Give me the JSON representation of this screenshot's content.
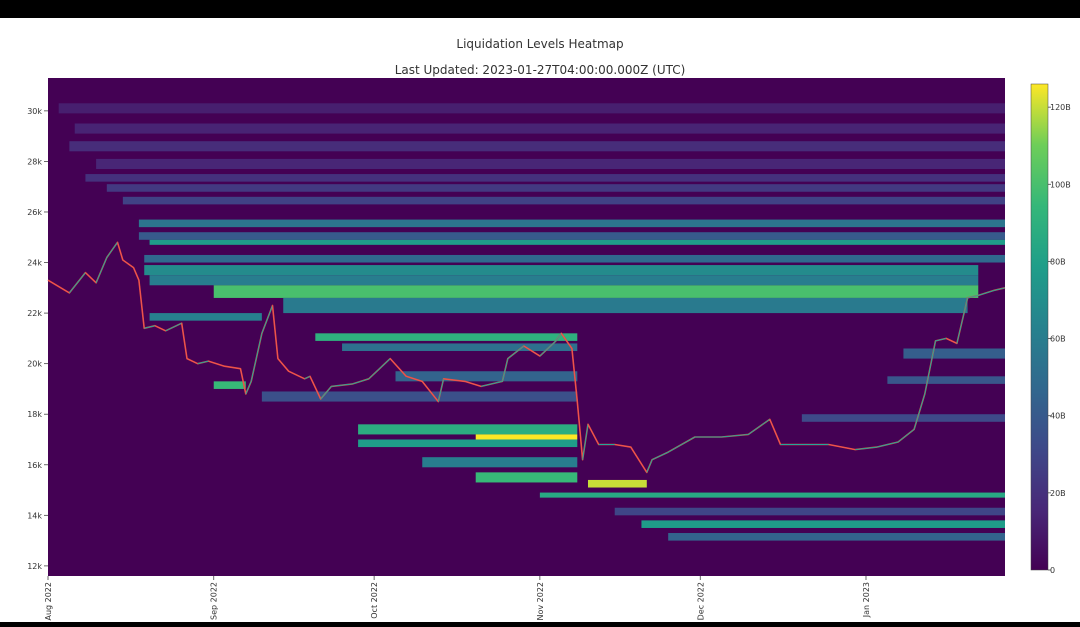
{
  "chart_data": {
    "type": "heatmap",
    "title": "Liquidation Levels Heatmap",
    "subtitle": "Last Updated: 2023-01-27T04:00:00.000Z (UTC)",
    "x_start": "2022-08-01",
    "x_end": "2023-01-27",
    "x_ticks": [
      {
        "label": "Aug 2022",
        "date": "2022-08-01"
      },
      {
        "label": "Sep 2022",
        "date": "2022-09-01"
      },
      {
        "label": "Oct 2022",
        "date": "2022-10-01"
      },
      {
        "label": "Nov 2022",
        "date": "2022-11-01"
      },
      {
        "label": "Dec 2022",
        "date": "2022-12-01"
      },
      {
        "label": "Jan 2023",
        "date": "2023-01-01"
      }
    ],
    "y_ticks": [
      {
        "label": "12k",
        "value": 12000
      },
      {
        "label": "14k",
        "value": 14000
      },
      {
        "label": "16k",
        "value": 16000
      },
      {
        "label": "18k",
        "value": 18000
      },
      {
        "label": "20k",
        "value": 20000
      },
      {
        "label": "22k",
        "value": 22000
      },
      {
        "label": "24k",
        "value": 24000
      },
      {
        "label": "26k",
        "value": 26000
      },
      {
        "label": "28k",
        "value": 28000
      },
      {
        "label": "30k",
        "value": 30000
      }
    ],
    "ylim": [
      11600,
      31300
    ],
    "colorbar": {
      "colorscale": "Viridis",
      "range": [
        0,
        126
      ],
      "unit": "B",
      "ticks": [
        {
          "label": "0",
          "value": 0
        },
        {
          "label": "20B",
          "value": 20
        },
        {
          "label": "40B",
          "value": 40
        },
        {
          "label": "60B",
          "value": 60
        },
        {
          "label": "80B",
          "value": 80
        },
        {
          "label": "100B",
          "value": 100
        },
        {
          "label": "120B",
          "value": 120
        }
      ]
    },
    "price_path": [
      [
        "2022-08-01",
        23300
      ],
      [
        "2022-08-05",
        22800
      ],
      [
        "2022-08-08",
        23600
      ],
      [
        "2022-08-10",
        23200
      ],
      [
        "2022-08-12",
        24200
      ],
      [
        "2022-08-14",
        24800
      ],
      [
        "2022-08-15",
        24100
      ],
      [
        "2022-08-17",
        23800
      ],
      [
        "2022-08-18",
        23300
      ],
      [
        "2022-08-19",
        21400
      ],
      [
        "2022-08-21",
        21500
      ],
      [
        "2022-08-23",
        21300
      ],
      [
        "2022-08-26",
        21600
      ],
      [
        "2022-08-27",
        20200
      ],
      [
        "2022-08-29",
        20000
      ],
      [
        "2022-08-31",
        20100
      ],
      [
        "2022-09-03",
        19900
      ],
      [
        "2022-09-06",
        19800
      ],
      [
        "2022-09-07",
        18800
      ],
      [
        "2022-09-08",
        19300
      ],
      [
        "2022-09-10",
        21200
      ],
      [
        "2022-09-12",
        22300
      ],
      [
        "2022-09-13",
        20200
      ],
      [
        "2022-09-15",
        19700
      ],
      [
        "2022-09-18",
        19400
      ],
      [
        "2022-09-19",
        19500
      ],
      [
        "2022-09-21",
        18600
      ],
      [
        "2022-09-23",
        19100
      ],
      [
        "2022-09-27",
        19200
      ],
      [
        "2022-09-30",
        19400
      ],
      [
        "2022-10-04",
        20200
      ],
      [
        "2022-10-07",
        19500
      ],
      [
        "2022-10-10",
        19300
      ],
      [
        "2022-10-13",
        18500
      ],
      [
        "2022-10-14",
        19400
      ],
      [
        "2022-10-18",
        19300
      ],
      [
        "2022-10-21",
        19100
      ],
      [
        "2022-10-25",
        19300
      ],
      [
        "2022-10-26",
        20200
      ],
      [
        "2022-10-29",
        20700
      ],
      [
        "2022-11-01",
        20300
      ],
      [
        "2022-11-04",
        20900
      ],
      [
        "2022-11-05",
        21200
      ],
      [
        "2022-11-07",
        20600
      ],
      [
        "2022-11-08",
        18500
      ],
      [
        "2022-11-09",
        16200
      ],
      [
        "2022-11-10",
        17600
      ],
      [
        "2022-11-12",
        16800
      ],
      [
        "2022-11-15",
        16800
      ],
      [
        "2022-11-18",
        16700
      ],
      [
        "2022-11-21",
        15700
      ],
      [
        "2022-11-22",
        16200
      ],
      [
        "2022-11-25",
        16500
      ],
      [
        "2022-11-30",
        17100
      ],
      [
        "2022-12-05",
        17100
      ],
      [
        "2022-12-10",
        17200
      ],
      [
        "2022-12-14",
        17800
      ],
      [
        "2022-12-16",
        16800
      ],
      [
        "2022-12-20",
        16800
      ],
      [
        "2022-12-25",
        16800
      ],
      [
        "2022-12-30",
        16600
      ],
      [
        "2023-01-03",
        16700
      ],
      [
        "2023-01-07",
        16900
      ],
      [
        "2023-01-10",
        17400
      ],
      [
        "2023-01-12",
        18800
      ],
      [
        "2023-01-14",
        20900
      ],
      [
        "2023-01-16",
        21000
      ],
      [
        "2023-01-18",
        20800
      ],
      [
        "2023-01-20",
        22600
      ],
      [
        "2023-01-22",
        22700
      ],
      [
        "2023-01-25",
        22900
      ],
      [
        "2023-01-27",
        23000
      ]
    ],
    "liquidation_bands": [
      {
        "y_low": 29900,
        "y_high": 30300,
        "start": "2022-08-03",
        "end": "2023-01-27",
        "value": 12
      },
      {
        "y_low": 29100,
        "y_high": 29500,
        "start": "2022-08-06",
        "end": "2023-01-27",
        "value": 14
      },
      {
        "y_low": 28400,
        "y_high": 28800,
        "start": "2022-08-05",
        "end": "2023-01-27",
        "value": 18
      },
      {
        "y_low": 27700,
        "y_high": 28100,
        "start": "2022-08-10",
        "end": "2023-01-27",
        "value": 15
      },
      {
        "y_low": 27200,
        "y_high": 27500,
        "start": "2022-08-08",
        "end": "2023-01-27",
        "value": 20
      },
      {
        "y_low": 26800,
        "y_high": 27100,
        "start": "2022-08-12",
        "end": "2023-01-27",
        "value": 24
      },
      {
        "y_low": 26300,
        "y_high": 26600,
        "start": "2022-08-15",
        "end": "2023-01-27",
        "value": 28
      },
      {
        "y_low": 25400,
        "y_high": 25700,
        "start": "2022-08-18",
        "end": "2023-01-27",
        "value": 55
      },
      {
        "y_low": 24900,
        "y_high": 25200,
        "start": "2022-08-18",
        "end": "2023-01-27",
        "value": 40
      },
      {
        "y_low": 24700,
        "y_high": 24900,
        "start": "2022-08-20",
        "end": "2023-01-27",
        "value": 78
      },
      {
        "y_low": 24000,
        "y_high": 24300,
        "start": "2022-08-19",
        "end": "2023-01-27",
        "value": 48
      },
      {
        "y_low": 23500,
        "y_high": 23900,
        "start": "2022-08-19",
        "end": "2023-01-22",
        "value": 68
      },
      {
        "y_low": 23100,
        "y_high": 23500,
        "start": "2022-08-20",
        "end": "2023-01-22",
        "value": 60
      },
      {
        "y_low": 22600,
        "y_high": 23100,
        "start": "2022-09-01",
        "end": "2023-01-22",
        "value": 100
      },
      {
        "y_low": 22000,
        "y_high": 22600,
        "start": "2022-09-14",
        "end": "2023-01-20",
        "value": 58
      },
      {
        "y_low": 21700,
        "y_high": 22000,
        "start": "2022-08-20",
        "end": "2022-09-10",
        "value": 62
      },
      {
        "y_low": 20900,
        "y_high": 21200,
        "start": "2022-09-20",
        "end": "2022-11-08",
        "value": 90
      },
      {
        "y_low": 20500,
        "y_high": 20800,
        "start": "2022-09-25",
        "end": "2022-11-08",
        "value": 52
      },
      {
        "y_low": 19300,
        "y_high": 19700,
        "start": "2022-10-05",
        "end": "2022-11-08",
        "value": 45
      },
      {
        "y_low": 19000,
        "y_high": 19300,
        "start": "2022-09-01",
        "end": "2022-09-07",
        "value": 95
      },
      {
        "y_low": 18500,
        "y_high": 18900,
        "start": "2022-09-10",
        "end": "2022-11-08",
        "value": 35
      },
      {
        "y_low": 17200,
        "y_high": 17600,
        "start": "2022-09-28",
        "end": "2022-11-08",
        "value": 88
      },
      {
        "y_low": 17000,
        "y_high": 17200,
        "start": "2022-10-20",
        "end": "2022-11-08",
        "value": 126
      },
      {
        "y_low": 16700,
        "y_high": 17000,
        "start": "2022-09-28",
        "end": "2022-11-08",
        "value": 78
      },
      {
        "y_low": 15900,
        "y_high": 16300,
        "start": "2022-10-10",
        "end": "2022-11-08",
        "value": 60
      },
      {
        "y_low": 15300,
        "y_high": 15700,
        "start": "2022-10-20",
        "end": "2022-11-08",
        "value": 95
      },
      {
        "y_low": 15100,
        "y_high": 15400,
        "start": "2022-11-10",
        "end": "2022-11-21",
        "value": 120
      },
      {
        "y_low": 14700,
        "y_high": 14900,
        "start": "2022-11-01",
        "end": "2023-01-27",
        "value": 85
      },
      {
        "y_low": 13500,
        "y_high": 13800,
        "start": "2022-11-20",
        "end": "2023-01-27",
        "value": 78
      },
      {
        "y_low": 13000,
        "y_high": 13300,
        "start": "2022-11-25",
        "end": "2023-01-27",
        "value": 45
      },
      {
        "y_low": 14000,
        "y_high": 14300,
        "start": "2022-11-15",
        "end": "2023-01-27",
        "value": 30
      },
      {
        "y_low": 17700,
        "y_high": 18000,
        "start": "2022-12-20",
        "end": "2023-01-27",
        "value": 32
      },
      {
        "y_low": 19200,
        "y_high": 19500,
        "start": "2023-01-05",
        "end": "2023-01-27",
        "value": 38
      },
      {
        "y_low": 20200,
        "y_high": 20600,
        "start": "2023-01-08",
        "end": "2023-01-27",
        "value": 42
      }
    ]
  }
}
